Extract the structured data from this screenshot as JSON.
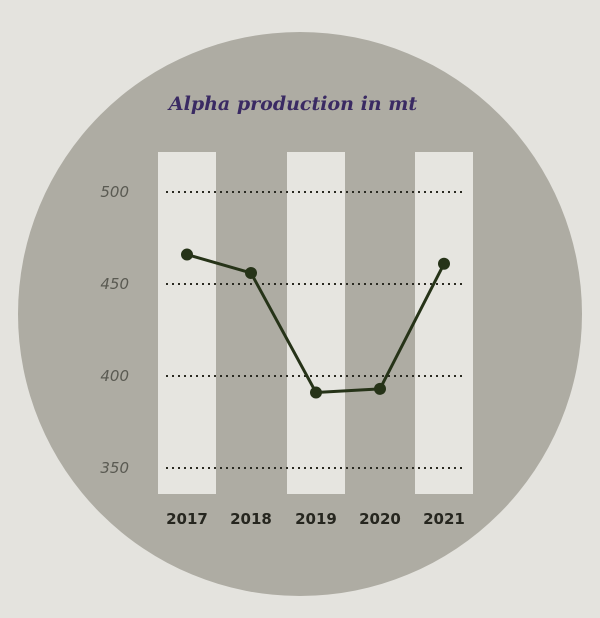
{
  "chart_data": {
    "type": "line",
    "title": "Alpha production in mt",
    "xlabel": "",
    "ylabel": "",
    "categories": [
      "2017",
      "2018",
      "2019",
      "2020",
      "2021"
    ],
    "series": [
      {
        "values": [
          466,
          456,
          391,
          393,
          461
        ]
      }
    ],
    "yticks": [
      "500",
      "450",
      "400",
      "350"
    ],
    "ylim": [
      350,
      500
    ],
    "grid": true,
    "legend": "none",
    "colors": {
      "background": "#e4e3de",
      "circle": "#aeaca3",
      "column": "#e6e5e0",
      "line": "#263318",
      "grid": "#2a2a22",
      "title": "#3a2a63"
    }
  }
}
